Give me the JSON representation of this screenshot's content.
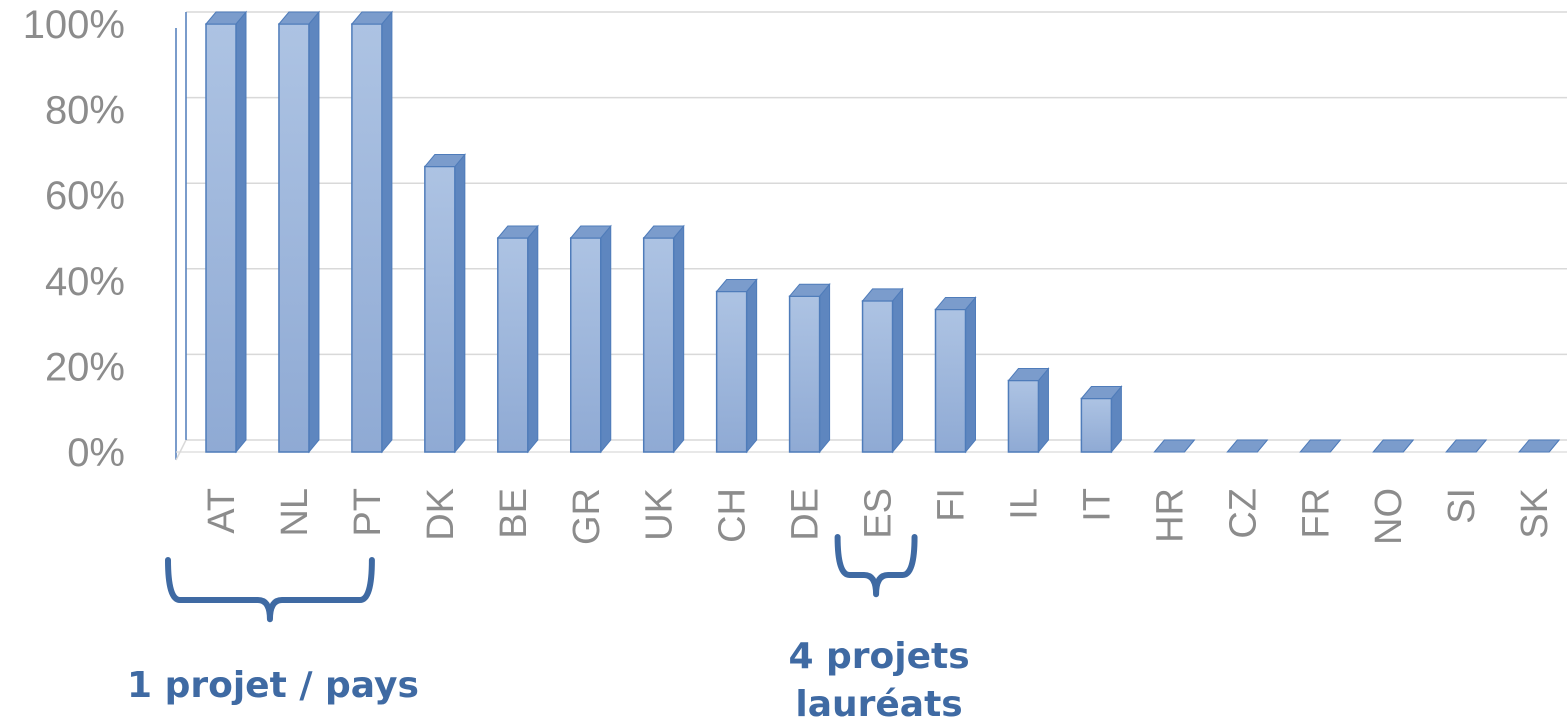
{
  "chart_data": {
    "type": "bar",
    "categories": [
      "AT",
      "NL",
      "PT",
      "DK",
      "BE",
      "GR",
      "UK",
      "CH",
      "DE",
      "ES",
      "FI",
      "IL",
      "IT",
      "HR",
      "CZ",
      "FR",
      "NO",
      "SI",
      "SK"
    ],
    "values": [
      100,
      100,
      100,
      66.7,
      50,
      50,
      50,
      37.5,
      36.4,
      35.3,
      33.3,
      16.7,
      12.5,
      0,
      0,
      0,
      0,
      0,
      0
    ],
    "ylim": [
      0,
      100
    ],
    "yticks": [
      "0%",
      "20%",
      "40%",
      "60%",
      "80%",
      "100%"
    ],
    "grid": true,
    "legend": "none",
    "colors": {
      "bar_front": "#9db5da",
      "bar_edge": "#4f7cba",
      "bar_side": "#5e86bf",
      "bar_top": "#7b9ccc",
      "grid": "#d9d9d9",
      "annotation": "#3f6aa3"
    },
    "annotations": [
      {
        "text_lines": [
          "1 projet / pays"
        ],
        "brace_from": "AT",
        "brace_to": "PT"
      },
      {
        "text_lines": [
          "4 projets",
          "lauréats"
        ],
        "brace_from": "DE",
        "brace_to": "ES"
      }
    ]
  }
}
